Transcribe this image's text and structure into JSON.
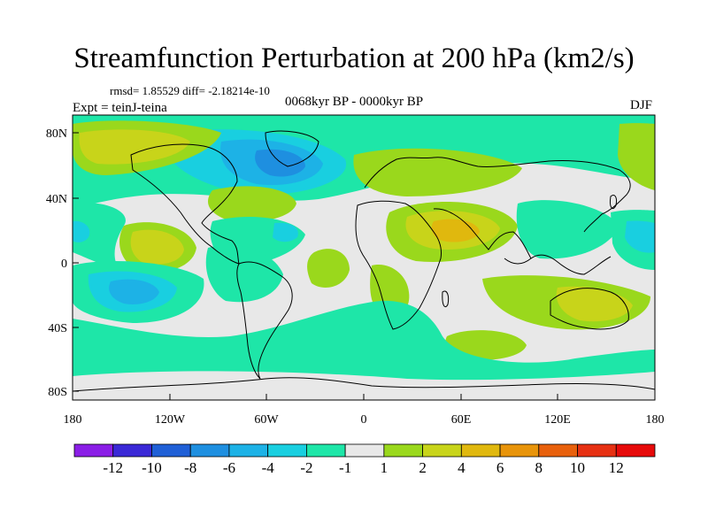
{
  "header": {
    "title": "Streamfunction Perturbation at 200 hPa (km2/s)",
    "stats": "rmsd= 1.85529 diff= -2.18214e-10",
    "period": "0068kyr BP - 0000kyr BP",
    "experiment": "Expt = teinJ-teina",
    "season": "DJF"
  },
  "axes": {
    "lat_labels": [
      "80N",
      "40N",
      "0",
      "40S",
      "80S"
    ],
    "lon_labels": [
      "180",
      "120W",
      "60W",
      "0",
      "60E",
      "120E",
      "180"
    ]
  },
  "colorbar": {
    "colors": [
      "#8a1ee6",
      "#3a28d6",
      "#1f5fd6",
      "#1e8fe0",
      "#1db2e6",
      "#19cfe0",
      "#1ee6a8",
      "#e8e8e8",
      "#9ad81c",
      "#c8d41a",
      "#e0b80e",
      "#e8940a",
      "#e8600c",
      "#e63012",
      "#e60a0a"
    ],
    "labels": [
      "-12",
      "-10",
      "-8",
      "-6",
      "-4",
      "-2",
      "-1",
      "1",
      "2",
      "4",
      "6",
      "8",
      "10",
      "12"
    ]
  },
  "legend_colors": {
    "neutral": "#e8e8e8",
    "neg1": "#1ee6a8",
    "neg2": "#19cfe0",
    "neg4": "#1db2e6",
    "neg6": "#1e8fe0",
    "pos1": "#9ad81c",
    "pos2": "#c8d41a",
    "pos4": "#e0b80e",
    "pos6": "#e8940a"
  }
}
